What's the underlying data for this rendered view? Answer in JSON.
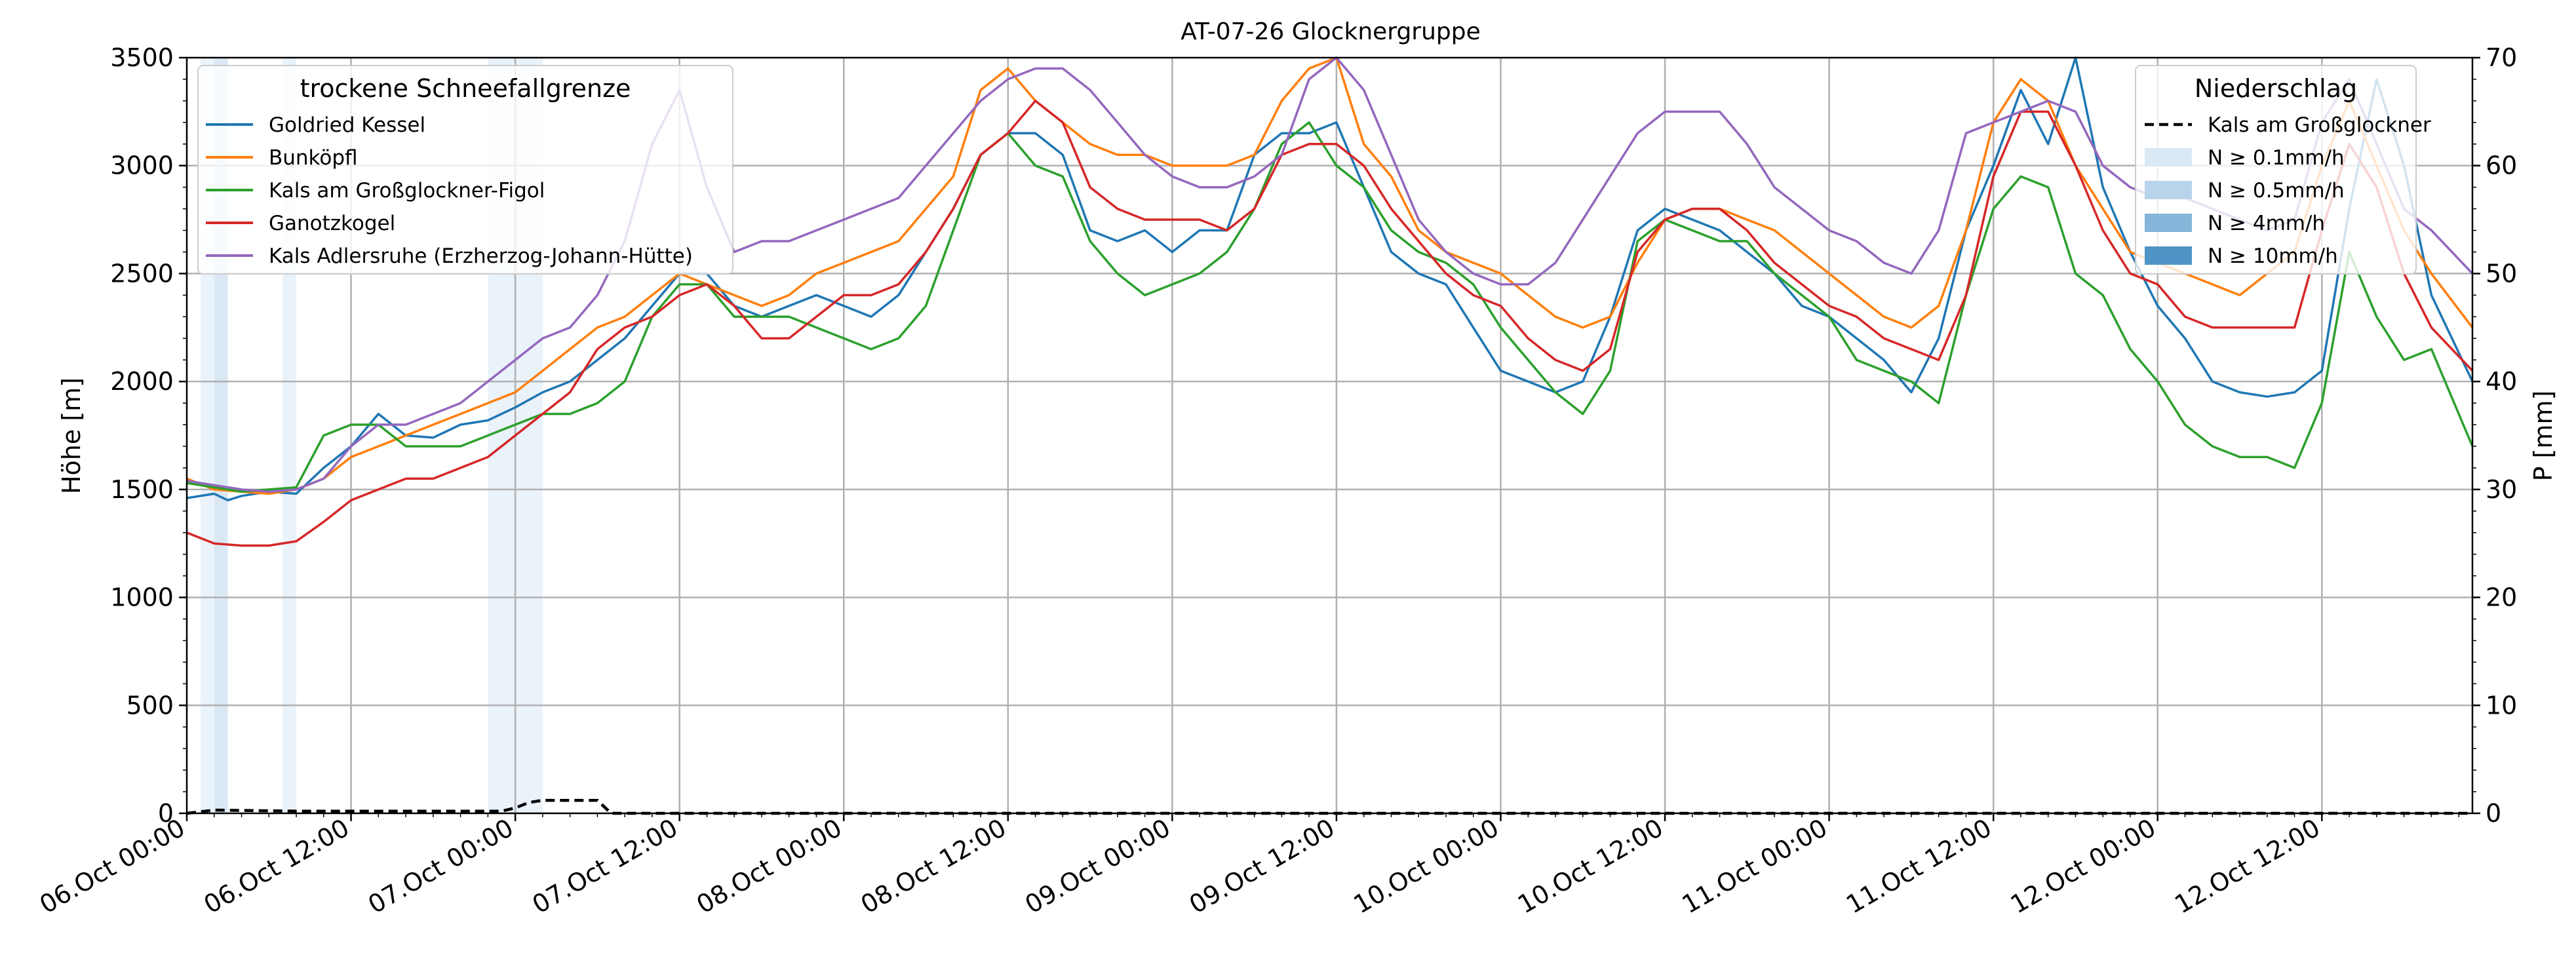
{
  "chart_data": {
    "type": "line",
    "title": "AT-07-26 Glocknergruppe",
    "ylabel": "Höhe [m]",
    "ylabel_right": "P [mm]",
    "ylim": [
      0,
      3500
    ],
    "ylim_right": [
      0,
      70
    ],
    "yticks": [
      0,
      500,
      1000,
      1500,
      2000,
      2500,
      3000,
      3500
    ],
    "yticks_right": [
      0,
      10,
      20,
      30,
      40,
      50,
      60,
      70
    ],
    "xlim_hours": [
      0,
      167
    ],
    "xticks": [
      {
        "h": 0,
        "label": "06.Oct 00:00"
      },
      {
        "h": 12,
        "label": "06.Oct 12:00"
      },
      {
        "h": 24,
        "label": "07.Oct 00:00"
      },
      {
        "h": 36,
        "label": "07.Oct 12:00"
      },
      {
        "h": 48,
        "label": "08.Oct 00:00"
      },
      {
        "h": 60,
        "label": "08.Oct 12:00"
      },
      {
        "h": 72,
        "label": "09.Oct 00:00"
      },
      {
        "h": 84,
        "label": "09.Oct 12:00"
      },
      {
        "h": 96,
        "label": "10.Oct 00:00"
      },
      {
        "h": 108,
        "label": "10.Oct 12:00"
      },
      {
        "h": 120,
        "label": "11.Oct 00:00"
      },
      {
        "h": 132,
        "label": "11.Oct 12:00"
      },
      {
        "h": 144,
        "label": "12.Oct 00:00"
      },
      {
        "h": 156,
        "label": "12.Oct 12:00"
      }
    ],
    "grid": true,
    "legend_left": {
      "title": "trockene Schneefallgrenze",
      "placement": "top-left"
    },
    "legend_right": {
      "title": "Niederschlag",
      "placement": "top-right",
      "entries": [
        {
          "label": "Kals am Großglockner",
          "kind": "dashed-line",
          "color": "#000000"
        },
        {
          "label": "N ≥ 0.1mm/h",
          "kind": "patch",
          "color": "#dae8f4"
        },
        {
          "label": "N ≥ 0.5mm/h",
          "kind": "patch",
          "color": "#b9d4ea"
        },
        {
          "label": "N ≥ 4mm/h",
          "kind": "patch",
          "color": "#83b6d9"
        },
        {
          "label": "N ≥ 10mm/h",
          "kind": "patch",
          "color": "#4f94c6"
        }
      ]
    },
    "precip_bands": [
      {
        "from": 1,
        "to": 2,
        "color": "#eaf2fa"
      },
      {
        "from": 2,
        "to": 3,
        "color": "#dae8f4"
      },
      {
        "from": 7,
        "to": 8,
        "color": "#eaf2fa"
      },
      {
        "from": 22,
        "to": 26,
        "color": "#eaf2fa"
      }
    ],
    "precip_series": {
      "name": "Kals am Großglockner",
      "x": [
        0,
        2,
        8,
        23,
        24,
        25,
        26,
        30,
        31,
        167
      ],
      "y": [
        0,
        0.3,
        0.2,
        0.2,
        0.5,
        1.0,
        1.2,
        1.2,
        0,
        0
      ]
    },
    "series": [
      {
        "name": "Goldried Kessel",
        "color": "#1f77b4",
        "x": [
          0,
          2,
          3,
          4,
          6,
          8,
          10,
          12,
          14,
          16,
          18,
          20,
          22,
          24,
          26,
          28,
          30,
          32,
          34,
          36,
          38,
          40,
          42,
          44,
          46,
          48,
          50,
          52,
          54,
          56,
          58,
          60,
          62,
          64,
          66,
          68,
          70,
          72,
          74,
          76,
          78,
          80,
          82,
          84,
          86,
          88,
          90,
          92,
          94,
          96,
          98,
          100,
          102,
          104,
          106,
          108,
          110,
          112,
          114,
          116,
          118,
          120,
          122,
          124,
          126,
          128,
          130,
          132,
          134,
          136,
          138,
          140,
          142,
          144,
          146,
          148,
          150,
          152,
          154,
          156,
          158,
          160,
          162,
          164,
          167
        ],
        "y": [
          1460,
          1480,
          1450,
          1470,
          1490,
          1480,
          1600,
          1700,
          1850,
          1750,
          1740,
          1800,
          1820,
          1880,
          1950,
          2000,
          2100,
          2200,
          2350,
          2500,
          2500,
          2350,
          2300,
          2350,
          2400,
          2350,
          2300,
          2400,
          2600,
          2800,
          3050,
          3150,
          3150,
          3050,
          2700,
          2650,
          2700,
          2600,
          2700,
          2700,
          3050,
          3150,
          3150,
          3200,
          2900,
          2600,
          2500,
          2450,
          2250,
          2050,
          2000,
          1950,
          2000,
          2300,
          2700,
          2800,
          2750,
          2700,
          2600,
          2500,
          2350,
          2300,
          2200,
          2100,
          1950,
          2200,
          2700,
          3000,
          3350,
          3100,
          3500,
          2900,
          2600,
          2350,
          2200,
          2000,
          1950,
          1930,
          1950,
          2050,
          2800,
          3400,
          3000,
          2400,
          2000
        ]
      },
      {
        "name": "Bunköpfl",
        "color": "#ff7f0e",
        "x": [
          0,
          2,
          4,
          6,
          8,
          10,
          12,
          14,
          16,
          18,
          20,
          22,
          24,
          26,
          28,
          30,
          32,
          34,
          36,
          38,
          40,
          42,
          44,
          46,
          48,
          50,
          52,
          54,
          56,
          58,
          60,
          62,
          64,
          66,
          68,
          70,
          72,
          74,
          76,
          78,
          80,
          82,
          84,
          86,
          88,
          90,
          92,
          94,
          96,
          98,
          100,
          102,
          104,
          106,
          108,
          110,
          112,
          114,
          116,
          118,
          120,
          122,
          124,
          126,
          128,
          130,
          132,
          134,
          136,
          138,
          140,
          142,
          144,
          146,
          148,
          150,
          152,
          154,
          156,
          158,
          160,
          162,
          164,
          167
        ],
        "y": [
          1550,
          1500,
          1490,
          1480,
          1500,
          1550,
          1650,
          1700,
          1750,
          1800,
          1850,
          1900,
          1950,
          2050,
          2150,
          2250,
          2300,
          2400,
          2500,
          2450,
          2400,
          2350,
          2400,
          2500,
          2550,
          2600,
          2650,
          2800,
          2950,
          3350,
          3450,
          3300,
          3200,
          3100,
          3050,
          3050,
          3000,
          3000,
          3000,
          3050,
          3300,
          3450,
          3500,
          3100,
          2950,
          2700,
          2600,
          2550,
          2500,
          2400,
          2300,
          2250,
          2300,
          2550,
          2750,
          2800,
          2800,
          2750,
          2700,
          2600,
          2500,
          2400,
          2300,
          2250,
          2350,
          2700,
          3200,
          3400,
          3300,
          3000,
          2800,
          2600,
          2550,
          2500,
          2450,
          2400,
          2500,
          2600,
          3000,
          3300,
          3000,
          2700,
          2500,
          2250
        ]
      },
      {
        "name": "Kals am Großglockner-Figol",
        "color": "#2ca02c",
        "x": [
          0,
          2,
          4,
          6,
          8,
          10,
          12,
          14,
          16,
          18,
          20,
          22,
          24,
          26,
          28,
          30,
          32,
          34,
          36,
          38,
          40,
          42,
          44,
          46,
          48,
          50,
          52,
          54,
          56,
          58,
          60,
          62,
          64,
          66,
          68,
          70,
          72,
          74,
          76,
          78,
          80,
          82,
          84,
          86,
          88,
          90,
          92,
          94,
          96,
          98,
          100,
          102,
          104,
          106,
          108,
          110,
          112,
          114,
          116,
          118,
          120,
          122,
          124,
          126,
          128,
          130,
          132,
          134,
          136,
          138,
          140,
          142,
          144,
          146,
          148,
          150,
          152,
          154,
          156,
          158,
          160,
          162,
          164,
          167
        ],
        "y": [
          1530,
          1510,
          1490,
          1500,
          1510,
          1750,
          1800,
          1800,
          1700,
          1700,
          1700,
          1750,
          1800,
          1850,
          1850,
          1900,
          2000,
          2300,
          2450,
          2450,
          2300,
          2300,
          2300,
          2250,
          2200,
          2150,
          2200,
          2350,
          2700,
          3050,
          3150,
          3000,
          2950,
          2650,
          2500,
          2400,
          2450,
          2500,
          2600,
          2800,
          3100,
          3200,
          3000,
          2900,
          2700,
          2600,
          2550,
          2450,
          2250,
          2100,
          1950,
          1850,
          2050,
          2650,
          2750,
          2700,
          2650,
          2650,
          2500,
          2400,
          2300,
          2100,
          2050,
          2000,
          1900,
          2400,
          2800,
          2950,
          2900,
          2500,
          2400,
          2150,
          2000,
          1800,
          1700,
          1650,
          1650,
          1600,
          1900,
          2600,
          2300,
          2100,
          2150,
          1700
        ]
      },
      {
        "name": "Ganotzkogel",
        "color": "#d62728",
        "x": [
          0,
          2,
          4,
          6,
          8,
          10,
          12,
          14,
          16,
          18,
          20,
          22,
          24,
          26,
          28,
          30,
          32,
          34,
          36,
          38,
          40,
          42,
          44,
          46,
          48,
          50,
          52,
          54,
          56,
          58,
          60,
          62,
          64,
          66,
          68,
          70,
          72,
          74,
          76,
          78,
          80,
          82,
          84,
          86,
          88,
          90,
          92,
          94,
          96,
          98,
          100,
          102,
          104,
          106,
          108,
          110,
          112,
          114,
          116,
          118,
          120,
          122,
          124,
          126,
          128,
          130,
          132,
          134,
          136,
          138,
          140,
          142,
          144,
          146,
          148,
          150,
          152,
          154,
          156,
          158,
          160,
          162,
          164,
          167
        ],
        "y": [
          1300,
          1250,
          1240,
          1240,
          1260,
          1350,
          1450,
          1500,
          1550,
          1550,
          1600,
          1650,
          1750,
          1850,
          1950,
          2150,
          2250,
          2300,
          2400,
          2450,
          2350,
          2200,
          2200,
          2300,
          2400,
          2400,
          2450,
          2600,
          2800,
          3050,
          3150,
          3300,
          3200,
          2900,
          2800,
          2750,
          2750,
          2750,
          2700,
          2800,
          3050,
          3100,
          3100,
          3000,
          2800,
          2650,
          2500,
          2400,
          2350,
          2200,
          2100,
          2050,
          2150,
          2600,
          2750,
          2800,
          2800,
          2700,
          2550,
          2450,
          2350,
          2300,
          2200,
          2150,
          2100,
          2400,
          2950,
          3250,
          3250,
          3000,
          2700,
          2500,
          2450,
          2300,
          2250,
          2250,
          2250,
          2250,
          2700,
          3100,
          2900,
          2500,
          2250,
          2050
        ]
      },
      {
        "name": "Kals Adlersruhe (Erzherzog-Johann-Hütte)",
        "color": "#9467bd",
        "x": [
          0,
          2,
          4,
          6,
          8,
          10,
          12,
          14,
          16,
          18,
          20,
          22,
          24,
          26,
          28,
          30,
          32,
          34,
          36,
          38,
          40,
          42,
          44,
          46,
          48,
          50,
          52,
          54,
          56,
          58,
          60,
          62,
          64,
          66,
          68,
          70,
          72,
          74,
          76,
          78,
          80,
          82,
          84,
          86,
          88,
          90,
          92,
          94,
          96,
          98,
          100,
          102,
          104,
          106,
          108,
          110,
          112,
          114,
          116,
          118,
          120,
          122,
          124,
          126,
          128,
          130,
          132,
          134,
          136,
          138,
          140,
          142,
          144,
          146,
          148,
          150,
          152,
          154,
          156,
          158,
          160,
          162,
          164,
          167
        ],
        "y": [
          1540,
          1520,
          1500,
          1490,
          1500,
          1550,
          1700,
          1800,
          1800,
          1850,
          1900,
          2000,
          2100,
          2200,
          2250,
          2400,
          2650,
          3100,
          3350,
          2900,
          2600,
          2650,
          2650,
          2700,
          2750,
          2800,
          2850,
          3000,
          3150,
          3300,
          3400,
          3450,
          3450,
          3350,
          3200,
          3050,
          2950,
          2900,
          2900,
          2950,
          3050,
          3400,
          3500,
          3350,
          3050,
          2750,
          2600,
          2500,
          2450,
          2450,
          2550,
          2750,
          2950,
          3150,
          3250,
          3250,
          3250,
          3100,
          2900,
          2800,
          2700,
          2650,
          2550,
          2500,
          2700,
          3150,
          3200,
          3250,
          3300,
          3250,
          3000,
          2900,
          2850,
          2850,
          2800,
          2750,
          2700,
          2750,
          3200,
          3400,
          3100,
          2800,
          2700,
          2500
        ]
      }
    ]
  }
}
